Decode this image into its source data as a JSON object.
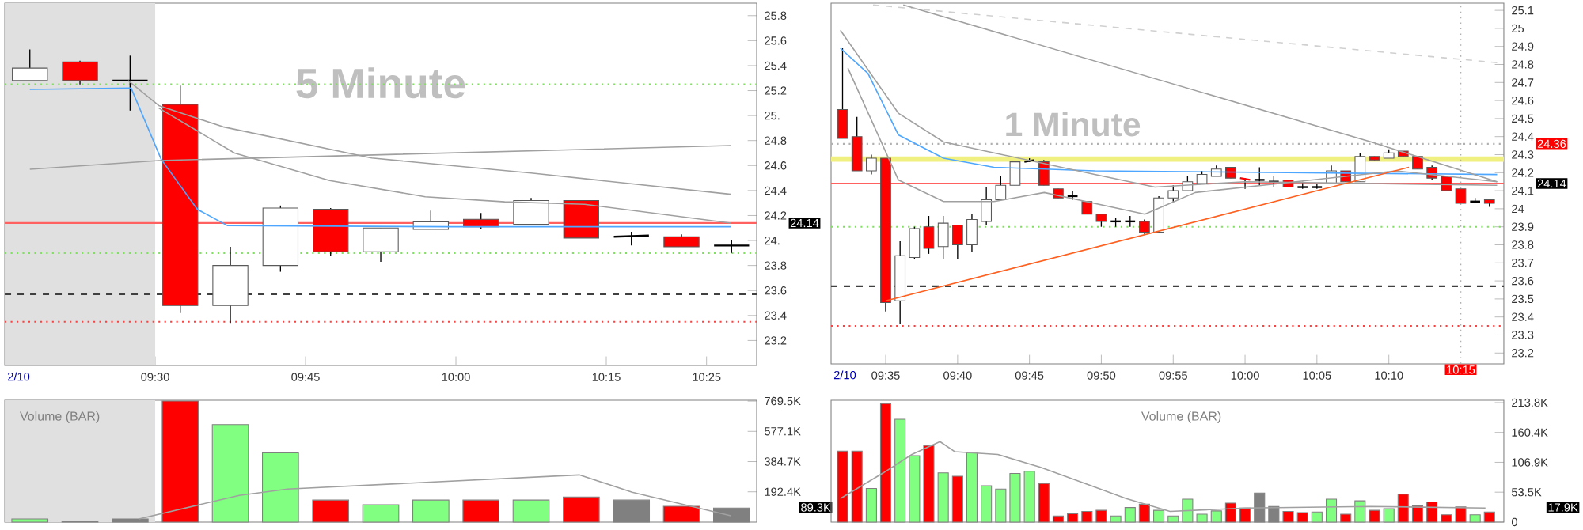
{
  "chart_data": [
    {
      "type": "candlestick",
      "title": "5 Minute",
      "x": [
        9.2917,
        9.375,
        9.4583,
        9.5417,
        9.625,
        9.7083,
        9.7917,
        9.875,
        9.9583,
        10.0417,
        10.125,
        10.2083,
        10.2917,
        10.375,
        10.4583
      ],
      "ohlc": [
        [
          25.28,
          25.53,
          25.28,
          25.38
        ],
        [
          25.43,
          25.44,
          25.25,
          25.28
        ],
        [
          25.28,
          25.48,
          25.04,
          25.28
        ],
        [
          25.09,
          25.24,
          23.42,
          23.48
        ],
        [
          23.48,
          23.95,
          23.34,
          23.8
        ],
        [
          23.8,
          24.28,
          23.75,
          24.26
        ],
        [
          24.25,
          24.26,
          23.88,
          23.91
        ],
        [
          23.91,
          24.1,
          23.83,
          24.1
        ],
        [
          24.09,
          24.24,
          24.09,
          24.15
        ],
        [
          24.17,
          24.22,
          24.09,
          24.11
        ],
        [
          24.13,
          24.34,
          24.13,
          24.32
        ],
        [
          24.32,
          24.32,
          24.02,
          24.02
        ],
        [
          24.03,
          24.07,
          23.96,
          24.04
        ],
        [
          24.03,
          24.05,
          23.95,
          23.95
        ],
        [
          23.96,
          24.0,
          23.9,
          23.96
        ]
      ],
      "colors": [
        "#ffffff",
        "#ff0000",
        "#000000",
        "#ff0000",
        "#ffffff",
        "#ffffff",
        "#ff0000",
        "#ffffff",
        "#ffffff",
        "#ff0000",
        "#ffffff",
        "#ff0000",
        "#000000",
        "#ff0000",
        "#000000"
      ],
      "series": [
        {
          "type": "line",
          "color": "#4da6ff",
          "x": [
            9.2917,
            9.46,
            9.51,
            9.57,
            9.62,
            9.99,
            10.457
          ],
          "values": [
            25.21,
            25.22,
            24.65,
            24.25,
            24.12,
            24.11,
            24.11
          ]
        },
        {
          "type": "line",
          "color": "#a0a0a0",
          "x": [
            9.2917,
            9.506,
            10.457
          ],
          "values": [
            24.57,
            24.64,
            24.76
          ]
        },
        {
          "type": "line",
          "color": "#a0a0a0",
          "x": [
            9.455,
            9.506,
            9.613,
            9.86,
            10.125,
            10.457
          ],
          "values": [
            25.28,
            25.08,
            24.91,
            24.66,
            24.54,
            24.37
          ]
        },
        {
          "type": "line",
          "color": "#a0a0a0",
          "x": [
            9.506,
            9.632,
            9.79,
            9.949,
            10.081,
            10.214,
            10.457
          ],
          "values": [
            25.06,
            24.7,
            24.48,
            24.35,
            24.31,
            24.29,
            24.14
          ]
        }
      ],
      "ref_lines": [
        {
          "axis": "y",
          "value": 25.25,
          "color": "#80e060",
          "line_style": "dotted"
        },
        {
          "axis": "y",
          "value": 23.9,
          "color": "#80e060",
          "line_style": "dotted"
        },
        {
          "axis": "y",
          "value": 24.14,
          "color": "#ff6060",
          "line_style": "solid",
          "label": "24.14"
        },
        {
          "axis": "y",
          "value": 23.57,
          "color": "#404040",
          "line_style": "dashed"
        },
        {
          "axis": "y",
          "value": 23.35,
          "color": "#ff4040",
          "line_style": "dotted"
        }
      ],
      "bands": [
        {
          "axis": "x",
          "from": 9.25,
          "to": 9.5,
          "color": "#e0e0e0"
        }
      ],
      "xlim": [
        9.25,
        10.5
      ],
      "ylim": [
        23.0,
        25.9
      ],
      "annotations": [
        "2/10"
      ],
      "xticks": [
        {
          "value": 9.5,
          "label": "09:30"
        },
        {
          "value": 9.75,
          "label": "09:45"
        },
        {
          "value": 10.0,
          "label": "10:00"
        },
        {
          "value": 10.25,
          "label": "10:15"
        },
        {
          "value": 10.4167,
          "label": "10:25"
        }
      ],
      "yticks": [
        23.2,
        23.4,
        23.6,
        23.8,
        {
          "value": 24.0,
          "label": "24."
        },
        24.2,
        24.4,
        24.6,
        24.8,
        {
          "value": 25.0,
          "label": "25."
        },
        25.2,
        25.4,
        25.6,
        25.8
      ]
    },
    {
      "type": "candlestick",
      "title": "1 Minute",
      "x": [
        9.5333,
        9.55,
        9.5667,
        9.5833,
        9.6,
        9.6167,
        9.6333,
        9.65,
        9.6667,
        9.6833,
        9.7,
        9.7167,
        9.7333,
        9.75,
        9.7667,
        9.7833,
        9.8,
        9.8167,
        9.8333,
        9.85,
        9.8667,
        9.8833,
        9.9,
        9.9167,
        9.9333,
        9.95,
        9.9667,
        9.9833,
        10.0,
        10.0167,
        10.0333,
        10.05,
        10.0667,
        10.0833,
        10.1,
        10.1167,
        10.1333,
        10.15,
        10.1667,
        10.1833,
        10.2,
        10.2167,
        10.2333,
        10.25,
        10.2667,
        10.2833
      ],
      "ohlc": [
        [
          24.55,
          24.89,
          24.39,
          24.39
        ],
        [
          24.4,
          24.51,
          24.21,
          24.21
        ],
        [
          24.21,
          24.3,
          24.19,
          24.28
        ],
        [
          24.28,
          24.28,
          23.43,
          23.48
        ],
        [
          23.49,
          23.82,
          23.36,
          23.74
        ],
        [
          23.73,
          23.9,
          23.72,
          23.89
        ],
        [
          23.9,
          23.96,
          23.75,
          23.78
        ],
        [
          23.79,
          23.96,
          23.72,
          23.92
        ],
        [
          23.91,
          23.91,
          23.72,
          23.8
        ],
        [
          23.8,
          23.97,
          23.76,
          23.94
        ],
        [
          23.93,
          24.12,
          23.91,
          24.05
        ],
        [
          24.05,
          24.18,
          24.05,
          24.13
        ],
        [
          24.13,
          24.26,
          24.13,
          24.26
        ],
        [
          24.26,
          24.28,
          24.26,
          24.27
        ],
        [
          24.26,
          24.27,
          24.13,
          24.13
        ],
        [
          24.11,
          24.11,
          24.06,
          24.06
        ],
        [
          24.07,
          24.1,
          24.05,
          24.07
        ],
        [
          24.04,
          24.04,
          23.97,
          23.97
        ],
        [
          23.97,
          23.97,
          23.9,
          23.93
        ],
        [
          23.93,
          23.95,
          23.9,
          23.93
        ],
        [
          23.93,
          23.96,
          23.9,
          23.93
        ],
        [
          23.93,
          23.94,
          23.86,
          23.87
        ],
        [
          23.87,
          24.07,
          23.87,
          24.06
        ],
        [
          24.06,
          24.13,
          24.04,
          24.1
        ],
        [
          24.1,
          24.18,
          24.1,
          24.15
        ],
        [
          24.14,
          24.21,
          24.14,
          24.19
        ],
        [
          24.18,
          24.24,
          24.18,
          24.22
        ],
        [
          24.23,
          24.23,
          24.17,
          24.17
        ],
        [
          24.17,
          24.17,
          24.11,
          24.16
        ],
        [
          24.16,
          24.23,
          24.13,
          24.16
        ],
        [
          24.15,
          24.18,
          24.12,
          24.15
        ],
        [
          24.16,
          24.16,
          24.12,
          24.12
        ],
        [
          24.12,
          24.15,
          24.11,
          24.12
        ],
        [
          24.12,
          24.14,
          24.11,
          24.12
        ],
        [
          24.14,
          24.24,
          24.14,
          24.21
        ],
        [
          24.21,
          24.21,
          24.15,
          24.15
        ],
        [
          24.15,
          24.31,
          24.15,
          24.29
        ],
        [
          24.29,
          24.29,
          24.27,
          24.27
        ],
        [
          24.28,
          24.33,
          24.28,
          24.31
        ],
        [
          24.32,
          24.32,
          24.29,
          24.29
        ],
        [
          24.29,
          24.29,
          24.22,
          24.22
        ],
        [
          24.23,
          24.24,
          24.16,
          24.17
        ],
        [
          24.18,
          24.18,
          24.1,
          24.1
        ],
        [
          24.11,
          24.11,
          24.03,
          24.03
        ],
        [
          24.04,
          24.06,
          24.03,
          24.04
        ],
        [
          24.05,
          24.05,
          24.01,
          24.03
        ]
      ],
      "colors": [
        "#ff0000",
        "#ff0000",
        "#ffffff",
        "#ff0000",
        "#ffffff",
        "#ffffff",
        "#ff0000",
        "#ffffff",
        "#ff0000",
        "#ffffff",
        "#ffffff",
        "#ffffff",
        "#ffffff",
        "#000000",
        "#ff0000",
        "#ff0000",
        "#000000",
        "#ff0000",
        "#ff0000",
        "#000000",
        "#000000",
        "#ff0000",
        "#ffffff",
        "#ffffff",
        "#ffffff",
        "#ffffff",
        "#ffffff",
        "#ff0000",
        "#ff0000",
        "#000000",
        "#000000",
        "#ff0000",
        "#000000",
        "#000000",
        "#ffffff",
        "#ff0000",
        "#ffffff",
        "#ff0000",
        "#ffffff",
        "#ff0000",
        "#ff0000",
        "#ff0000",
        "#ff0000",
        "#ff0000",
        "#000000",
        "#ff0000"
      ],
      "series": [
        {
          "type": "line",
          "color": "#4da6ff",
          "x": [
            9.5308,
            9.5628,
            9.598,
            9.6505,
            9.7088,
            9.8255,
            10.2922
          ],
          "values": [
            24.89,
            24.75,
            24.41,
            24.28,
            24.23,
            24.21,
            24.19
          ]
        },
        {
          "type": "line",
          "color": "#a0a0a0",
          "x": [
            9.5308,
            9.598,
            9.6505,
            9.7088,
            9.8255,
            9.8955,
            10.0005,
            10.2922
          ],
          "values": [
            24.99,
            24.53,
            24.37,
            24.31,
            24.19,
            24.12,
            24.15,
            24.13
          ]
        },
        {
          "type": "line",
          "color": "#a0a0a0",
          "x": [
            9.5395,
            9.598,
            9.6505,
            9.7088,
            9.7672,
            9.8838,
            9.9422,
            10.0588,
            10.1755,
            10.2922
          ],
          "values": [
            24.78,
            24.16,
            24.04,
            24.04,
            24.09,
            23.97,
            24.09,
            24.15,
            24.21,
            24.15
          ]
        },
        {
          "type": "line",
          "color": "#a0a0a0",
          "x": [
            9.6037,
            10.1463,
            10.2922
          ],
          "values": [
            25.13,
            24.37,
            24.15
          ]
        },
        {
          "type": "line",
          "color": "#d0d0d0",
          "line_style": "dashed",
          "x": [
            9.5687,
            10.2922
          ],
          "values": [
            25.13,
            24.81
          ]
        },
        {
          "type": "line",
          "color": "#ff6020",
          "x": [
            9.5833,
            10.19
          ],
          "values": [
            23.49,
            24.23
          ]
        }
      ],
      "ref_lines": [
        {
          "axis": "y",
          "value": 23.9,
          "color": "#80e060",
          "line_style": "dotted"
        },
        {
          "axis": "y",
          "value": 24.14,
          "color": "#ff6060",
          "line_style": "solid",
          "label": "24.14"
        },
        {
          "axis": "y",
          "value": 24.36,
          "color": "#b0b0b0",
          "line_style": "dotted",
          "label": "24.36"
        },
        {
          "axis": "y",
          "value": 23.57,
          "color": "#404040",
          "line_style": "dashed"
        },
        {
          "axis": "y",
          "value": 23.35,
          "color": "#ff4040",
          "line_style": "dotted"
        },
        {
          "axis": "x",
          "value": 10.25,
          "color": "#b0b0b0",
          "line_style": "dotted",
          "label": "10:15"
        }
      ],
      "bands": [
        {
          "axis": "y",
          "from": 24.26,
          "to": 24.29,
          "color": "#f0f080"
        }
      ],
      "xlim": [
        9.52,
        10.3
      ],
      "ylim": [
        23.14,
        25.14
      ],
      "annotations": [
        "2/10"
      ],
      "xticks": [
        {
          "value": 9.5833,
          "label": "09:35"
        },
        {
          "value": 9.6667,
          "label": "09:40"
        },
        {
          "value": 9.75,
          "label": "09:45"
        },
        {
          "value": 9.8333,
          "label": "09:50"
        },
        {
          "value": 9.9167,
          "label": "09:55"
        },
        {
          "value": 10.0,
          "label": "10:00"
        },
        {
          "value": 10.0833,
          "label": "10:05"
        },
        {
          "value": 10.1667,
          "label": "10:10"
        }
      ],
      "yticks": [
        23.2,
        23.3,
        23.4,
        23.5,
        23.6,
        23.7,
        23.8,
        23.9,
        {
          "value": 24.0,
          "label": "24"
        },
        24.1,
        24.2,
        24.3,
        24.4,
        24.5,
        24.6,
        24.7,
        24.8,
        24.9,
        {
          "value": 25.0,
          "label": "25"
        },
        25.1
      ]
    },
    {
      "type": "bar",
      "title": "Volume (BAR)",
      "tick_labels": "y",
      "x": [
        9.2917,
        9.375,
        9.4583,
        9.5417,
        9.625,
        9.7083,
        9.7917,
        9.875,
        9.9583,
        10.0417,
        10.125,
        10.2083,
        10.2917,
        10.375,
        10.4583
      ],
      "values": [
        20,
        5,
        20,
        770,
        620,
        440,
        140,
        110,
        140,
        140,
        140,
        160,
        140,
        100,
        89.3
      ],
      "colors": [
        "#80ff80",
        "#808080",
        "#808080",
        "#ff0000",
        "#80ff80",
        "#80ff80",
        "#ff0000",
        "#80ff80",
        "#80ff80",
        "#ff0000",
        "#80ff80",
        "#ff0000",
        "#808080",
        "#ff0000",
        "#808080"
      ],
      "series": [
        {
          "type": "line",
          "color": "#a0a0a0",
          "x": [
            9.473,
            9.64,
            9.72,
            10.205,
            10.293,
            10.457
          ],
          "values": [
            20,
            170,
            210,
            300,
            190,
            40
          ]
        }
      ],
      "annotations": [
        "89.3K"
      ],
      "bands": [
        {
          "axis": "x",
          "from": 9.25,
          "to": 9.5,
          "color": "#e0e0e0"
        }
      ],
      "xlim": [
        9.25,
        10.5
      ],
      "ylim": [
        0,
        775
      ],
      "yticks": [
        {
          "value": 192.4,
          "label": "192.4K"
        },
        {
          "value": 384.7,
          "label": "384.7K"
        },
        {
          "value": 577.1,
          "label": "577.1K"
        },
        {
          "value": 769.5,
          "label": "769.5K"
        }
      ]
    },
    {
      "type": "bar",
      "title": "Volume (BAR)",
      "tick_labels": "y",
      "x": [
        9.5333,
        9.55,
        9.5667,
        9.5833,
        9.6,
        9.6167,
        9.6333,
        9.65,
        9.6667,
        9.6833,
        9.7,
        9.7167,
        9.7333,
        9.75,
        9.7667,
        9.7833,
        9.8,
        9.8167,
        9.8333,
        9.85,
        9.8667,
        9.8833,
        9.9,
        9.9167,
        9.9333,
        9.95,
        9.9667,
        9.9833,
        10.0,
        10.0167,
        10.0333,
        10.05,
        10.0667,
        10.0833,
        10.1,
        10.1167,
        10.1333,
        10.15,
        10.1667,
        10.1833,
        10.2,
        10.2167,
        10.2333,
        10.25,
        10.2667,
        10.2833
      ],
      "values": [
        127,
        127,
        60,
        212,
        184,
        119,
        137,
        88,
        82,
        124,
        65,
        59,
        87,
        91,
        69,
        11,
        15,
        19,
        21,
        11,
        26,
        32,
        21,
        11,
        41,
        14,
        20,
        34,
        25,
        52,
        28,
        19,
        17,
        18,
        41,
        14,
        38,
        21,
        24,
        50,
        29,
        36,
        13,
        27,
        13,
        17.9
      ],
      "colors": [
        "#ff0000",
        "#ff0000",
        "#80ff80",
        "#ff0000",
        "#80ff80",
        "#80ff80",
        "#ff0000",
        "#80ff80",
        "#ff0000",
        "#80ff80",
        "#80ff80",
        "#80ff80",
        "#80ff80",
        "#80ff80",
        "#ff0000",
        "#ff0000",
        "#ff0000",
        "#ff0000",
        "#ff0000",
        "#80ff80",
        "#80ff80",
        "#ff0000",
        "#80ff80",
        "#80ff80",
        "#80ff80",
        "#80ff80",
        "#80ff80",
        "#ff0000",
        "#ff0000",
        "#808080",
        "#808080",
        "#ff0000",
        "#ff0000",
        "#80ff80",
        "#80ff80",
        "#ff0000",
        "#80ff80",
        "#ff0000",
        "#80ff80",
        "#ff0000",
        "#ff0000",
        "#ff0000",
        "#ff0000",
        "#ff0000",
        "#80ff80",
        "#ff0000"
      ],
      "series": [
        {
          "type": "line",
          "color": "#a0a0a0",
          "x": [
            9.5308,
            9.5805,
            9.6137,
            9.6463,
            9.6633,
            9.7133,
            9.763,
            9.8127,
            9.8622,
            9.913,
            10.0005,
            10.145,
            10.2787
          ],
          "values": [
            42,
            88,
            121,
            144,
            126,
            121,
            98,
            70,
            42,
            19,
            25,
            28,
            25
          ]
        }
      ],
      "annotations": [
        "17.9K"
      ],
      "xlim": [
        9.52,
        10.3
      ],
      "ylim": [
        0,
        218
      ],
      "yticks": [
        0,
        {
          "value": 53.5,
          "label": "53.5K"
        },
        {
          "value": 106.9,
          "label": "106.9K"
        },
        {
          "value": 160.4,
          "label": "160.4K"
        },
        {
          "value": 213.8,
          "label": "213.8K"
        }
      ]
    }
  ]
}
